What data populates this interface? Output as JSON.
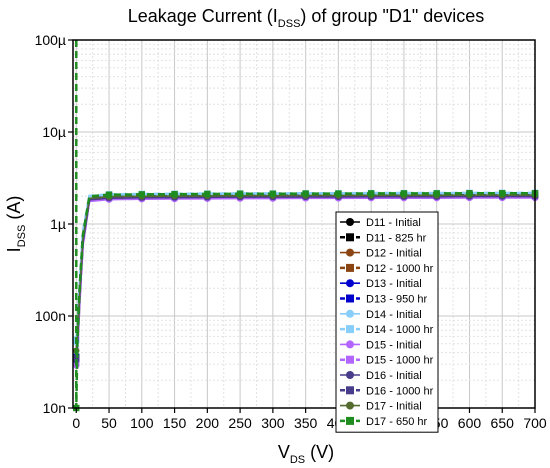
{
  "chart_data": {
    "type": "line",
    "title": {
      "pre": "Leakage Current (I",
      "sub": "DSS",
      "post": ") of group \"D1\" devices"
    },
    "xlabel": {
      "main": "V",
      "sub": "DS",
      "post": " (V)"
    },
    "ylabel": {
      "main": "I",
      "sub": "DSS",
      "post": " (A)"
    },
    "y_scale": "log",
    "xlim": [
      -5,
      700
    ],
    "ylim": [
      1e-08,
      0.0001
    ],
    "x_ticks": [
      0,
      50,
      100,
      150,
      200,
      250,
      300,
      350,
      400,
      450,
      500,
      550,
      600,
      650,
      700
    ],
    "x_tick_labels": [
      "0",
      "50",
      "100",
      "150",
      "200",
      "250",
      "300",
      "350",
      "400",
      "450",
      "500",
      "550",
      "600",
      "650",
      "700"
    ],
    "y_ticks": [
      1e-08,
      1e-07,
      1e-06,
      1e-05,
      0.0001
    ],
    "y_tick_labels": [
      "10n",
      "100n",
      "1µ",
      "10µ",
      "100µ"
    ],
    "grid": true,
    "legend_position": "lower-right",
    "marker_x": [
      0,
      50,
      100,
      150,
      200,
      250,
      300,
      350,
      400,
      450,
      500,
      550,
      600,
      650,
      700
    ],
    "series": [
      {
        "name": "D11 - Initial",
        "color": "#000000",
        "marker": "circle",
        "style": "solid",
        "x": [
          0,
          2,
          5,
          10,
          20,
          50,
          100,
          150,
          200,
          250,
          300,
          350,
          400,
          450,
          500,
          550,
          600,
          650,
          700
        ],
        "y": [
          3.2e-08,
          5e-08,
          1.5e-07,
          6e-07,
          1.8e-06,
          1.88e-06,
          1.9e-06,
          1.91e-06,
          1.92e-06,
          1.93e-06,
          1.93e-06,
          1.94e-06,
          1.94e-06,
          1.95e-06,
          1.95e-06,
          1.95e-06,
          1.96e-06,
          1.96e-06,
          1.96e-06
        ]
      },
      {
        "name": "D11 - 825 hr",
        "color": "#000000",
        "marker": "square",
        "style": "dashed",
        "x": [
          0,
          2,
          5,
          10,
          20,
          50,
          100,
          150,
          200,
          250,
          300,
          350,
          400,
          450,
          500,
          550,
          600,
          650,
          700
        ],
        "y": [
          3.5e-08,
          6e-08,
          1.8e-07,
          7e-07,
          1.92e-06,
          2e-06,
          2.02e-06,
          2.03e-06,
          2.04e-06,
          2.05e-06,
          2.05e-06,
          2.06e-06,
          2.06e-06,
          2.07e-06,
          2.07e-06,
          2.07e-06,
          2.08e-06,
          2.08e-06,
          2.08e-06
        ]
      },
      {
        "name": "D12 - Initial",
        "color": "#8b4513",
        "marker": "circle",
        "style": "solid",
        "x": [
          0,
          2,
          5,
          10,
          20,
          50,
          100,
          150,
          200,
          250,
          300,
          350,
          400,
          450,
          500,
          550,
          600,
          650,
          700
        ],
        "y": [
          3e-08,
          4.8e-08,
          1.4e-07,
          5.8e-07,
          1.78e-06,
          1.86e-06,
          1.88e-06,
          1.89e-06,
          1.9e-06,
          1.91e-06,
          1.91e-06,
          1.92e-06,
          1.92e-06,
          1.93e-06,
          1.93e-06,
          1.93e-06,
          1.94e-06,
          1.94e-06,
          1.94e-06
        ]
      },
      {
        "name": "D12 - 1000 hr",
        "color": "#8b4513",
        "marker": "square",
        "style": "dashed",
        "x": [
          0,
          2,
          5,
          10,
          20,
          50,
          100,
          150,
          200,
          250,
          300,
          350,
          400,
          450,
          500,
          550,
          600,
          650,
          700
        ],
        "y": [
          3.3e-08,
          5.5e-08,
          1.6e-07,
          6.5e-07,
          1.9e-06,
          1.98e-06,
          2e-06,
          2.01e-06,
          2.02e-06,
          2.03e-06,
          2.03e-06,
          2.04e-06,
          2.04e-06,
          2.05e-06,
          2.05e-06,
          2.05e-06,
          2.06e-06,
          2.06e-06,
          2.06e-06
        ]
      },
      {
        "name": "D13 - Initial",
        "color": "#0000cc",
        "marker": "circle",
        "style": "solid",
        "x": [
          0,
          2,
          5,
          10,
          20,
          50,
          100,
          150,
          200,
          250,
          300,
          350,
          400,
          450,
          500,
          550,
          600,
          650,
          700
        ],
        "y": [
          3.4e-08,
          5.2e-08,
          1.5e-07,
          6.2e-07,
          1.85e-06,
          1.93e-06,
          1.95e-06,
          1.96e-06,
          1.97e-06,
          1.98e-06,
          1.98e-06,
          1.99e-06,
          1.99e-06,
          2e-06,
          2e-06,
          2e-06,
          2.01e-06,
          2.01e-06,
          2.01e-06
        ]
      },
      {
        "name": "D13 - 950 hr",
        "color": "#0000cc",
        "marker": "square",
        "style": "dashed",
        "x": [
          0,
          2,
          5,
          10,
          20,
          50,
          100,
          150,
          200,
          250,
          300,
          350,
          400,
          450,
          500,
          550,
          600,
          650,
          700
        ],
        "y": [
          3.6e-08,
          6.2e-08,
          1.9e-07,
          7.2e-07,
          1.95e-06,
          2.04e-06,
          2.06e-06,
          2.07e-06,
          2.08e-06,
          2.09e-06,
          2.09e-06,
          2.1e-06,
          2.1e-06,
          2.11e-06,
          2.11e-06,
          2.11e-06,
          2.12e-06,
          2.12e-06,
          2.12e-06
        ]
      },
      {
        "name": "D14 - Initial",
        "color": "#87cefa",
        "marker": "circle",
        "style": "solid",
        "x": [
          0,
          2,
          5,
          10,
          20,
          50,
          100,
          150,
          200,
          250,
          300,
          350,
          400,
          450,
          500,
          550,
          600,
          650,
          700
        ],
        "y": [
          5.2e-08,
          7e-08,
          2e-07,
          8e-07,
          2e-06,
          2.08e-06,
          2.1e-06,
          2.11e-06,
          2.12e-06,
          2.13e-06,
          2.13e-06,
          2.14e-06,
          2.14e-06,
          2.15e-06,
          2.15e-06,
          2.15e-06,
          2.16e-06,
          2.16e-06,
          2.16e-06
        ]
      },
      {
        "name": "D14 - 1000 hr",
        "color": "#87cefa",
        "marker": "square",
        "style": "dashed",
        "x": [
          0,
          2,
          5,
          10,
          20,
          50,
          100,
          150,
          200,
          250,
          300,
          350,
          400,
          450,
          500,
          550,
          600,
          650,
          700
        ],
        "y": [
          5.5e-08,
          7.5e-08,
          2.1e-07,
          8.2e-07,
          2.02e-06,
          2.1e-06,
          2.12e-06,
          2.13e-06,
          2.14e-06,
          2.15e-06,
          2.15e-06,
          2.16e-06,
          2.16e-06,
          2.17e-06,
          2.17e-06,
          2.17e-06,
          2.18e-06,
          2.18e-06,
          2.18e-06
        ]
      },
      {
        "name": "D15 - Initial",
        "color": "#b266ff",
        "marker": "circle",
        "style": "solid",
        "x": [
          0,
          2,
          5,
          10,
          20,
          50,
          100,
          150,
          200,
          250,
          300,
          350,
          400,
          450,
          500,
          550,
          600,
          650,
          700
        ],
        "y": [
          2.9e-08,
          4.6e-08,
          1.35e-07,
          5.6e-07,
          1.76e-06,
          1.84e-06,
          1.86e-06,
          1.87e-06,
          1.88e-06,
          1.89e-06,
          1.89e-06,
          1.9e-06,
          1.9e-06,
          1.91e-06,
          1.91e-06,
          1.91e-06,
          1.92e-06,
          1.92e-06,
          1.92e-06
        ]
      },
      {
        "name": "D15 - 1000 hr",
        "color": "#b266ff",
        "marker": "square",
        "style": "dashed",
        "x": [
          0,
          2,
          5,
          10,
          20,
          50,
          100,
          150,
          200,
          250,
          300,
          350,
          400,
          450,
          500,
          550,
          600,
          650,
          700
        ],
        "y": [
          3.1e-08,
          5e-08,
          1.45e-07,
          6e-07,
          1.82e-06,
          1.9e-06,
          1.92e-06,
          1.93e-06,
          1.94e-06,
          1.95e-06,
          1.95e-06,
          1.96e-06,
          1.96e-06,
          1.97e-06,
          1.97e-06,
          1.97e-06,
          1.98e-06,
          1.98e-06,
          1.98e-06
        ]
      },
      {
        "name": "D16 - Initial",
        "color": "#483d8b",
        "marker": "circle",
        "style": "solid",
        "x": [
          0,
          2,
          5,
          10,
          20,
          50,
          100,
          150,
          200,
          250,
          300,
          350,
          400,
          450,
          500,
          550,
          600,
          650,
          700
        ],
        "y": [
          3.3e-08,
          5.1e-08,
          1.5e-07,
          6.1e-07,
          1.83e-06,
          1.91e-06,
          1.93e-06,
          1.94e-06,
          1.95e-06,
          1.96e-06,
          1.96e-06,
          1.97e-06,
          1.97e-06,
          1.98e-06,
          1.98e-06,
          1.98e-06,
          1.99e-06,
          1.99e-06,
          1.99e-06
        ]
      },
      {
        "name": "D16 - 1000 hr",
        "color": "#483d8b",
        "marker": "square",
        "style": "dashed",
        "x": [
          0,
          2,
          5,
          10,
          20,
          50,
          100,
          150,
          200,
          250,
          300,
          350,
          400,
          450,
          500,
          550,
          600,
          650,
          700
        ],
        "y": [
          3.5e-08,
          5.6e-08,
          1.65e-07,
          6.6e-07,
          1.88e-06,
          1.96e-06,
          1.98e-06,
          1.99e-06,
          2e-06,
          2.01e-06,
          2.01e-06,
          2.02e-06,
          2.02e-06,
          2.03e-06,
          2.03e-06,
          2.03e-06,
          2.04e-06,
          2.04e-06,
          2.04e-06
        ]
      },
      {
        "name": "D17 - Initial",
        "color": "#556b2f",
        "marker": "circle",
        "style": "solid",
        "x": [
          0,
          2,
          5,
          10,
          20,
          50,
          100,
          150,
          200,
          250,
          300,
          350,
          400,
          450,
          500,
          550,
          600,
          650,
          700
        ],
        "y": [
          4.2e-08,
          6.2e-08,
          1.7e-07,
          6.8e-07,
          1.9e-06,
          1.98e-06,
          2e-06,
          2.01e-06,
          2.02e-06,
          2.03e-06,
          2.03e-06,
          2.04e-06,
          2.04e-06,
          2.05e-06,
          2.05e-06,
          2.05e-06,
          2.06e-06,
          2.06e-06,
          2.06e-06
        ]
      },
      {
        "name": "D17 - 650 hr",
        "color": "#1e8c1e",
        "marker": "square",
        "style": "dashed",
        "x": [
          0,
          0,
          2,
          5,
          10,
          20,
          50,
          100,
          150,
          200,
          250,
          300,
          350,
          400,
          450,
          500,
          550,
          600,
          650,
          700
        ],
        "y": [
          0.0001,
          1e-08,
          6.5e-08,
          1.9e-07,
          7.5e-07,
          2e-06,
          2.08e-06,
          2.1e-06,
          2.11e-06,
          2.12e-06,
          2.13e-06,
          2.13e-06,
          2.14e-06,
          2.14e-06,
          2.15e-06,
          2.15e-06,
          2.15e-06,
          2.16e-06,
          2.16e-06,
          2.16e-06
        ]
      }
    ]
  }
}
